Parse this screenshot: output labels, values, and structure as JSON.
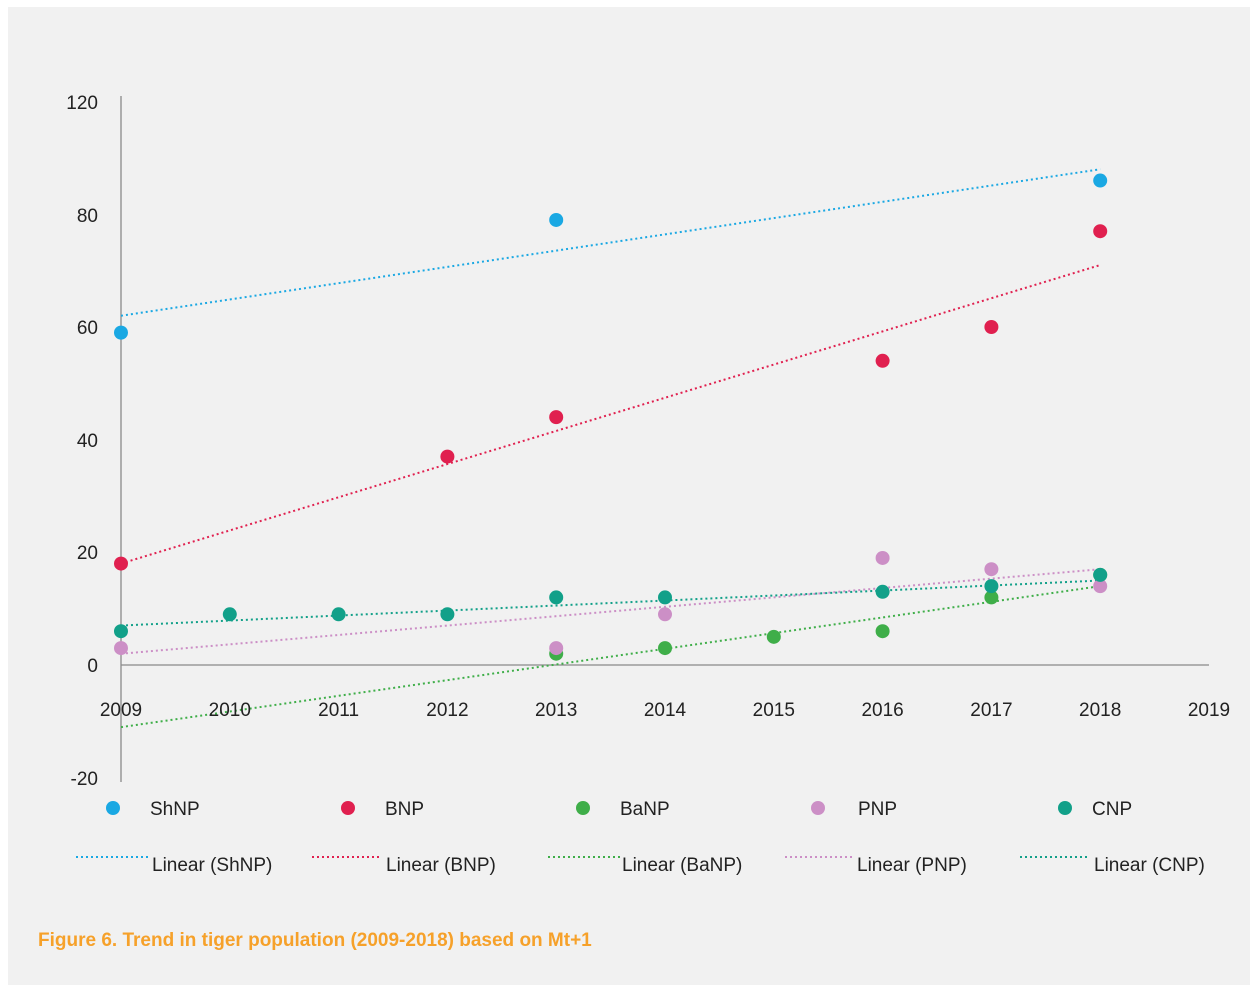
{
  "colors": {
    "background": "#f1f1f1",
    "axis": "#8a8a8a",
    "caption": "#f6a12a"
  },
  "caption": "Figure 6. Trend in tiger population (2009-2018) based on Mt+1",
  "chart_data": {
    "type": "scatter",
    "title": "",
    "xlabel": "",
    "ylabel": "",
    "xlim": [
      2009,
      2019
    ],
    "ylim": [
      -20,
      120
    ],
    "x_ticks": [
      "2009",
      "2010",
      "2011",
      "2012",
      "2013",
      "2014",
      "2015",
      "2016",
      "2017",
      "2018",
      "2019"
    ],
    "y_ticks": [
      "120",
      "80",
      "60",
      "40",
      "20",
      "0",
      "-20"
    ],
    "grid": false,
    "legend_position": "bottom",
    "series": [
      {
        "name": "ShNP",
        "color": "#1aa8e3",
        "points": [
          [
            2009,
            59
          ],
          [
            2013,
            79
          ],
          [
            2018,
            86
          ]
        ],
        "trend": {
          "label": "Linear (ShNP)",
          "from": [
            2009,
            62
          ],
          "to": [
            2018,
            88
          ]
        }
      },
      {
        "name": "BNP",
        "color": "#e0204f",
        "points": [
          [
            2009,
            18
          ],
          [
            2012,
            37
          ],
          [
            2013,
            44
          ],
          [
            2016,
            54
          ],
          [
            2017,
            60
          ],
          [
            2018,
            77
          ]
        ],
        "trend": {
          "label": "Linear (BNP)",
          "from": [
            2009,
            18
          ],
          "to": [
            2018,
            71
          ]
        }
      },
      {
        "name": "BaNP",
        "color": "#3fae49",
        "points": [
          [
            2013,
            2
          ],
          [
            2014,
            3
          ],
          [
            2015,
            5
          ],
          [
            2016,
            6
          ],
          [
            2017,
            12
          ],
          [
            2018,
            16
          ]
        ],
        "trend": {
          "label": "Linear (BaNP)",
          "from": [
            2009,
            -11
          ],
          "to": [
            2018,
            14
          ]
        }
      },
      {
        "name": "PNP",
        "color": "#cc8fc6",
        "points": [
          [
            2009,
            3
          ],
          [
            2013,
            3
          ],
          [
            2014,
            9
          ],
          [
            2016,
            19
          ],
          [
            2017,
            17
          ],
          [
            2018,
            14
          ]
        ],
        "trend": {
          "label": "Linear (PNP)",
          "from": [
            2009,
            2
          ],
          "to": [
            2018,
            17
          ]
        }
      },
      {
        "name": "CNP",
        "color": "#12a089",
        "points": [
          [
            2009,
            6
          ],
          [
            2010,
            9
          ],
          [
            2011,
            9
          ],
          [
            2012,
            9
          ],
          [
            2013,
            12
          ],
          [
            2014,
            12
          ],
          [
            2016,
            13
          ],
          [
            2017,
            14
          ],
          [
            2018,
            16
          ]
        ],
        "trend": {
          "label": "Linear (CNP)",
          "from": [
            2009,
            7
          ],
          "to": [
            2018,
            15
          ]
        }
      }
    ]
  }
}
